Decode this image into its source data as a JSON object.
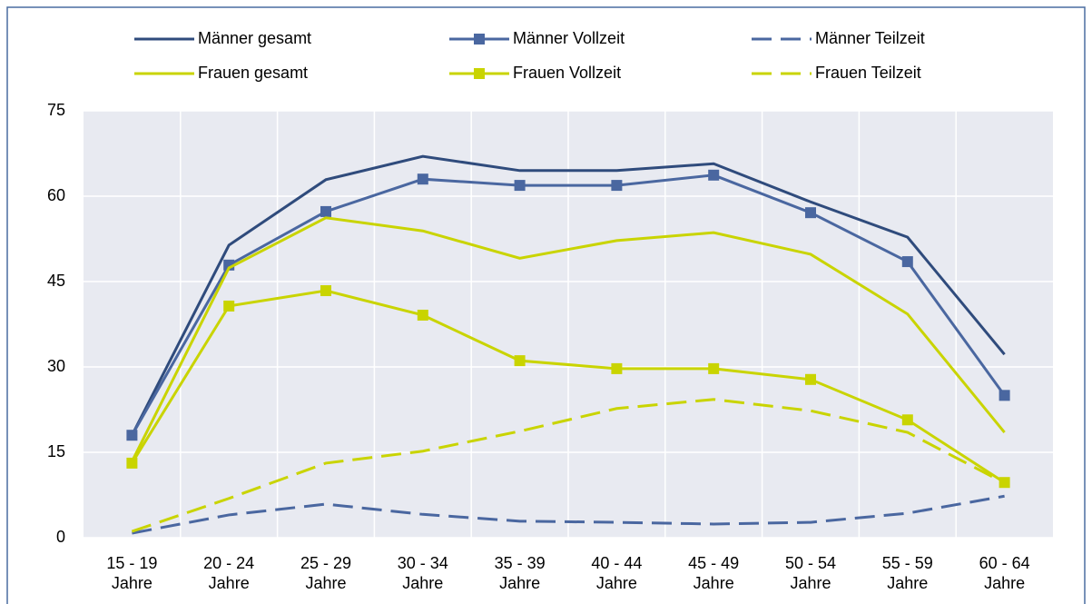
{
  "chart_data": {
    "type": "line",
    "categories": [
      "15 - 19\nJahre",
      "20 - 24\nJahre",
      "25 - 29\nJahre",
      "30 - 34\nJahre",
      "35 - 39\nJahre",
      "40 - 44\nJahre",
      "45 - 49\nJahre",
      "50 - 54\nJahre",
      "55 - 59\nJahre",
      "60 - 64\nJahre"
    ],
    "series": [
      {
        "name": "Männer gesamt",
        "color": "#2f4b7c",
        "marker": null,
        "dashed": false,
        "values": [
          18,
          51.4,
          62.9,
          67,
          64.5,
          64.5,
          65.7,
          59,
          52.8,
          32.2
        ]
      },
      {
        "name": "Männer Vollzeit",
        "color": "#4a67a0",
        "marker": "square",
        "dashed": false,
        "values": [
          18,
          47.9,
          57.3,
          63,
          61.9,
          61.9,
          63.7,
          57.1,
          48.5,
          25
        ]
      },
      {
        "name": "Männer Teilzeit",
        "color": "#4a67a0",
        "marker": null,
        "dashed": true,
        "values": [
          0.8,
          4,
          5.9,
          4.1,
          2.9,
          2.7,
          2.4,
          2.7,
          4.3,
          7.3
        ]
      },
      {
        "name": "Frauen gesamt",
        "color": "#c9d400",
        "marker": null,
        "dashed": false,
        "values": [
          13.4,
          47.4,
          56.2,
          53.9,
          49.1,
          52.2,
          53.6,
          49.8,
          39.3,
          18.5
        ]
      },
      {
        "name": "Frauen Vollzeit",
        "color": "#c9d400",
        "marker": "square",
        "dashed": false,
        "values": [
          13.1,
          40.7,
          43.4,
          39.1,
          31.1,
          29.7,
          29.7,
          27.8,
          20.7,
          9.7
        ]
      },
      {
        "name": "Frauen Teilzeit",
        "color": "#c9d400",
        "marker": null,
        "dashed": true,
        "values": [
          1.1,
          6.9,
          13.1,
          15.2,
          18.7,
          22.7,
          24.3,
          22.3,
          18.5,
          9.6
        ]
      }
    ],
    "ylim": [
      0,
      75
    ],
    "yticks": [
      0,
      15,
      30,
      45,
      60,
      75
    ],
    "grid": true,
    "legend": "top"
  }
}
